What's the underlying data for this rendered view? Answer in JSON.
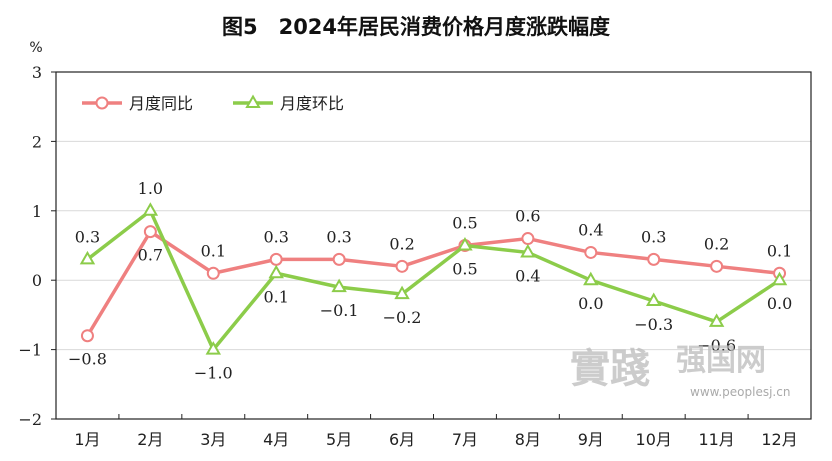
{
  "chart_data": {
    "type": "line",
    "title": "图5　2024年居民消费价格月度涨跌幅度",
    "unit_label": "%",
    "categories": [
      "1月",
      "2月",
      "3月",
      "4月",
      "5月",
      "6月",
      "7月",
      "8月",
      "9月",
      "10月",
      "11月",
      "12月"
    ],
    "ylim": [
      -2,
      3
    ],
    "yticks": [
      -2,
      -1,
      0,
      1,
      2,
      3
    ],
    "grid": true,
    "legend_position": "top-left",
    "series": [
      {
        "name": "月度同比",
        "color": "#ef8080",
        "marker": "circle",
        "values": [
          -0.8,
          0.7,
          0.1,
          0.3,
          0.3,
          0.2,
          0.5,
          0.6,
          0.4,
          0.3,
          0.2,
          0.1
        ],
        "labels": [
          "-0.8",
          "0.7",
          "0.1",
          "0.3",
          "0.3",
          "0.2",
          "0.5",
          "0.6",
          "0.4",
          "0.3",
          "0.2",
          "0.1"
        ],
        "label_side": [
          "below",
          "below",
          "above",
          "above",
          "above",
          "above",
          "above",
          "above",
          "above",
          "above",
          "above",
          "above"
        ]
      },
      {
        "name": "月度环比",
        "color": "#8ccc4a",
        "marker": "triangle",
        "values": [
          0.3,
          1.0,
          -1.0,
          0.1,
          -0.1,
          -0.2,
          0.5,
          0.4,
          0.0,
          -0.3,
          -0.6,
          0.0
        ],
        "labels": [
          "0.3",
          "1.0",
          "-1.0",
          "0.1",
          "-0.1",
          "-0.2",
          "0.5",
          "0.4",
          "0.0",
          "-0.3",
          "-0.6",
          "0.0"
        ],
        "label_side": [
          "above",
          "above",
          "below",
          "below",
          "below",
          "below",
          "below",
          "below",
          "below",
          "below",
          "below",
          "below"
        ]
      }
    ]
  },
  "watermark": {
    "seal_text": "實踐",
    "site_name": "强国网",
    "url": "www.peoplesj.cn"
  }
}
